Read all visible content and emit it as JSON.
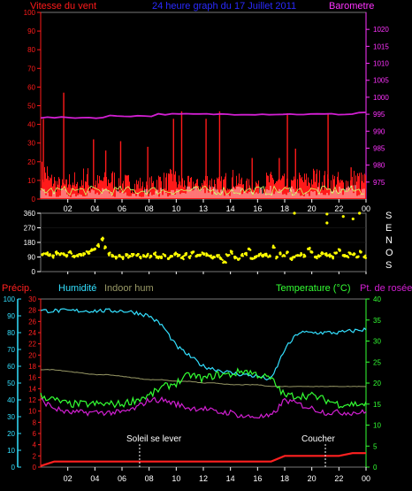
{
  "colors": {
    "wind": "#ff1a1a",
    "gust_base": "#ffffff",
    "baro": "#d21fd2",
    "baro_axis": "#ff33ff",
    "title": "#2a2aff",
    "dir": "#ffff00",
    "precip": "#ff2020",
    "humidity": "#33e0ff",
    "indoor": "#999966",
    "temp": "#33ff33",
    "dew": "#d21fd2",
    "axis_white": "#ffffff",
    "plot_bg": "#000000"
  },
  "header": {
    "wind_label": "Vitesse du vent",
    "title": "24 heure graph du 17 Juillet 2011",
    "baro_label": "Barometre"
  },
  "compass": [
    "S",
    "E",
    "N",
    "O",
    "S"
  ],
  "mid_labels": {
    "precip": "Précip.",
    "humidity": "Humidité",
    "indoor": "Indoor hum",
    "temp": "Temperature (°C)",
    "dew": "Pt. de rosée"
  },
  "annotations": {
    "sunrise": "Soleil se lever",
    "sunset": "Coucher"
  },
  "chart_data": [
    {
      "type": "line",
      "name": "wind",
      "ylim": [
        0,
        100
      ],
      "y2lim": [
        970,
        1025
      ],
      "xticks": [
        "02",
        "04",
        "06",
        "08",
        "10",
        "13",
        "14",
        "16",
        "18",
        "20",
        "22",
        "00"
      ],
      "ytick_left": [
        0,
        10,
        20,
        30,
        40,
        50,
        60,
        70,
        80,
        90,
        100
      ],
      "ytick_right": [
        975,
        980,
        985,
        990,
        995,
        1000,
        1005,
        1010,
        1015,
        1020
      ],
      "series": [
        {
          "key": "wind_gust",
          "values": [
            17,
            12,
            10,
            9,
            12,
            8,
            14,
            9,
            11,
            12,
            13,
            9,
            11,
            9,
            10,
            8,
            10,
            12,
            12,
            13,
            11,
            10,
            10,
            9,
            12,
            11,
            10,
            12,
            13,
            11,
            9,
            10,
            8,
            12,
            12,
            11,
            9,
            10,
            12,
            12,
            14,
            13,
            11,
            12,
            10,
            11,
            13,
            12
          ]
        },
        {
          "key": "wind_avg",
          "values": [
            4,
            3,
            3,
            4,
            3,
            3,
            4,
            4,
            3,
            4,
            3,
            4,
            4,
            4,
            3,
            4,
            3,
            4,
            4,
            4,
            4,
            5,
            5,
            4,
            5,
            5,
            4,
            5,
            5,
            5,
            4,
            4,
            5,
            5,
            4,
            5,
            5,
            5,
            4,
            4,
            5,
            5,
            4,
            4,
            5,
            5,
            5,
            4
          ]
        },
        {
          "key": "barometer",
          "values": [
            994,
            994,
            994,
            994,
            994,
            994,
            994,
            994,
            994,
            994,
            994.5,
            994.5,
            994.5,
            994.5,
            994.5,
            994.5,
            994.5,
            995,
            995,
            995,
            995,
            995,
            995,
            995,
            995,
            995,
            995,
            995,
            995,
            995,
            995,
            995,
            995,
            995,
            995,
            995,
            995,
            995,
            995,
            995,
            995,
            995,
            995,
            995,
            995,
            995,
            995.5,
            995.5
          ]
        }
      ],
      "gust_spikes": [
        {
          "hour": 1.7,
          "value": 57
        },
        {
          "hour": 0.2,
          "value": 43
        },
        {
          "hour": 3.9,
          "value": 32
        },
        {
          "hour": 4.8,
          "value": 26
        },
        {
          "hour": 5.9,
          "value": 31
        },
        {
          "hour": 10.4,
          "value": 47
        },
        {
          "hour": 9.8,
          "value": 43
        },
        {
          "hour": 12.2,
          "value": 43
        },
        {
          "hour": 13.2,
          "value": 47
        },
        {
          "hour": 18.2,
          "value": 46
        },
        {
          "hour": 21.2,
          "value": 46
        },
        {
          "hour": 17.6,
          "value": 22
        },
        {
          "hour": 15.6,
          "value": 22
        },
        {
          "hour": 7.9,
          "value": 28
        },
        {
          "hour": 18.8,
          "value": 27
        },
        {
          "hour": 22.9,
          "value": 17
        }
      ]
    },
    {
      "type": "scatter",
      "name": "wind_direction",
      "ylim": [
        0,
        360
      ],
      "yticks": [
        0,
        90,
        180,
        270,
        360
      ],
      "values": [
        105,
        110,
        100,
        95,
        115,
        105,
        110,
        100,
        120,
        95,
        100,
        105,
        110,
        120,
        130,
        140,
        160,
        200,
        150,
        110,
        95,
        90,
        100,
        85,
        100,
        95,
        105,
        100,
        90,
        95,
        100,
        95,
        110,
        90,
        85,
        100,
        80,
        95,
        110,
        100,
        85,
        105,
        90,
        120,
        95,
        100,
        110,
        105,
        95,
        90,
        100,
        80,
        60,
        100,
        120,
        90,
        75,
        100,
        110,
        140,
        80,
        90,
        105,
        95,
        100,
        95,
        150,
        90,
        110,
        100,
        120,
        80,
        90,
        100,
        105,
        95,
        140,
        120,
        90,
        95,
        110,
        105,
        100,
        90,
        115,
        130,
        100,
        95,
        110,
        105,
        90,
        120,
        90
      ]
    },
    {
      "type": "line",
      "name": "temperature_humidity",
      "ylim_humidity": [
        0,
        100
      ],
      "ylim_precip": [
        0,
        30
      ],
      "ylim_temp": [
        0,
        40
      ],
      "xticks": [
        "02",
        "04",
        "06",
        "08",
        "10",
        "12",
        "14",
        "16",
        "18",
        "20",
        "22",
        "00"
      ],
      "ytick_humidity": [
        0,
        10,
        20,
        30,
        40,
        50,
        60,
        70,
        80,
        90,
        100
      ],
      "ytick_precip": [
        0,
        2,
        4,
        6,
        8,
        10,
        12,
        14,
        16,
        18,
        20,
        22,
        24,
        26,
        28,
        30
      ],
      "ytick_temp": [
        0,
        5,
        10,
        15,
        20,
        25,
        30,
        35,
        40
      ],
      "x_hours": [
        0,
        1,
        2,
        3,
        4,
        5,
        6,
        7,
        8,
        9,
        10,
        11,
        12,
        13,
        14,
        15,
        16,
        17,
        18,
        19,
        20,
        21,
        22,
        23,
        24
      ],
      "series": [
        {
          "key": "humidity",
          "values": [
            93,
            93,
            93,
            93,
            93,
            93,
            93,
            92,
            90,
            84,
            72,
            66,
            60,
            58,
            56,
            55,
            54,
            52,
            70,
            80,
            80,
            80,
            80,
            81,
            82
          ]
        },
        {
          "key": "indoor_humidity",
          "values": [
            58,
            58,
            57,
            56,
            55,
            55,
            54,
            53,
            52,
            52,
            51,
            51,
            50,
            50,
            49,
            49,
            49,
            48,
            48,
            48,
            48,
            48,
            48,
            48,
            48
          ]
        },
        {
          "key": "temperature",
          "values": [
            17,
            16,
            15,
            15,
            15,
            15,
            15,
            16,
            17,
            19,
            20,
            22,
            21,
            22,
            22,
            23,
            22,
            21,
            17,
            17,
            17,
            16,
            15,
            15,
            15
          ]
        },
        {
          "key": "dew_point",
          "values": [
            16,
            14,
            13,
            13,
            13,
            13,
            13,
            14,
            16,
            16,
            15,
            14,
            14,
            13,
            13,
            12,
            12,
            12,
            16,
            15,
            14,
            13,
            13,
            13,
            13
          ]
        },
        {
          "key": "precipitation",
          "values": [
            0.2,
            1,
            1,
            1,
            1,
            1,
            1,
            1,
            1,
            1,
            1,
            1,
            1,
            1,
            1,
            1,
            1,
            1,
            2,
            2,
            2,
            2,
            2,
            2.5,
            2.5
          ]
        }
      ]
    }
  ]
}
